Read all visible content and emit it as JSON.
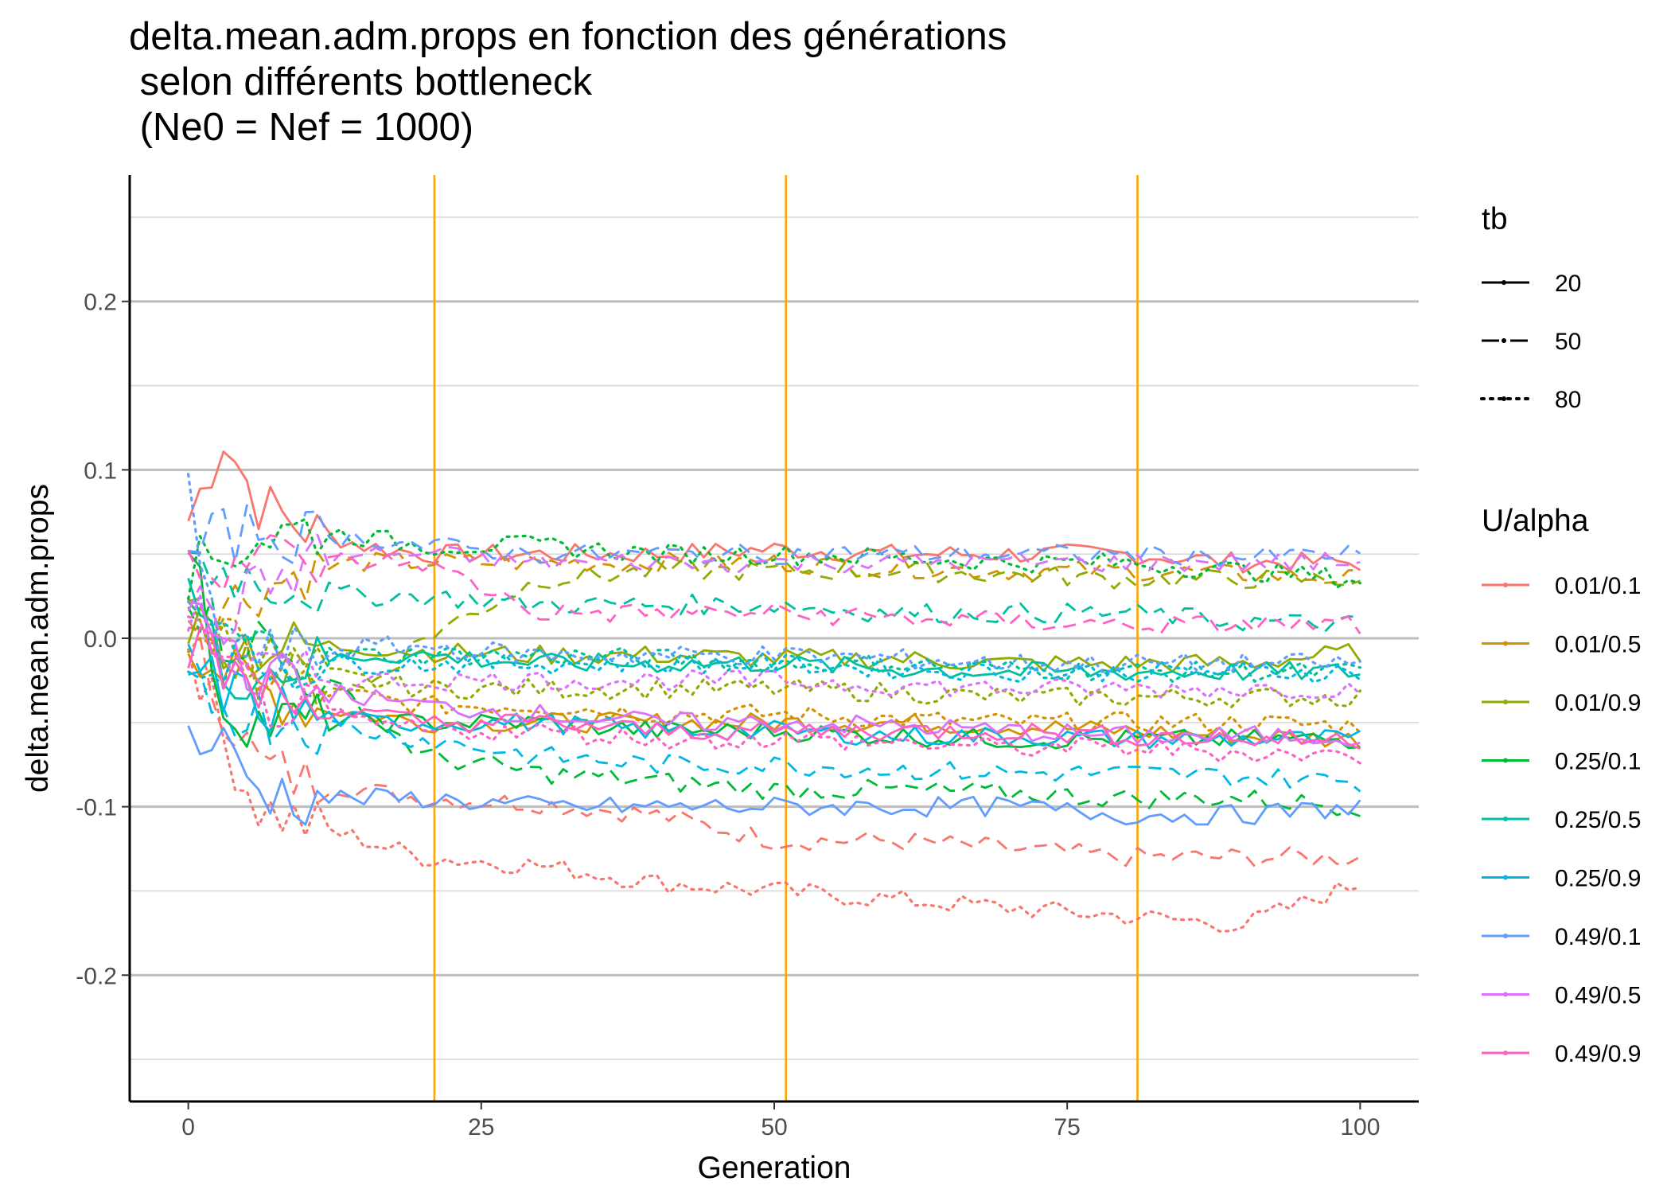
{
  "chart_data": {
    "type": "line",
    "title": [
      "delta.mean.adm.props en fonction des générations",
      " selon différents bottleneck",
      " (Ne0 = Nef = 1000)"
    ],
    "xlabel": "Generation",
    "ylabel": "delta.mean.adm.props",
    "xlim": [
      -5,
      105
    ],
    "ylim": [
      -0.275,
      0.275
    ],
    "x_ticks": [
      0,
      25,
      50,
      75,
      100
    ],
    "x_tick_labels": [
      "0",
      "25",
      "50",
      "75",
      "100"
    ],
    "y_ticks": [
      -0.2,
      -0.1,
      0.0,
      0.1,
      0.2
    ],
    "y_tick_labels": [
      "-0.2",
      "-0.1",
      "0.0",
      "0.1",
      "0.2"
    ],
    "grid": "horizontal",
    "vlines": [
      21,
      51,
      81
    ],
    "vline_color": "#FFA500",
    "legend_position": "right",
    "legends": [
      {
        "title": "tb",
        "items": [
          {
            "label": "20",
            "linetype": "solid"
          },
          {
            "label": "50",
            "linetype": "dashed"
          },
          {
            "label": "80",
            "linetype": "dotted"
          }
        ]
      },
      {
        "title": "U/alpha",
        "items": [
          {
            "label": "0.01/0.1",
            "color": "#F8766D"
          },
          {
            "label": "0.01/0.5",
            "color": "#D39200"
          },
          {
            "label": "0.01/0.9",
            "color": "#93AA00"
          },
          {
            "label": "0.25/0.1",
            "color": "#00BA38"
          },
          {
            "label": "0.25/0.5",
            "color": "#00C19F"
          },
          {
            "label": "0.25/0.9",
            "color": "#00B9E3"
          },
          {
            "label": "0.49/0.1",
            "color": "#619CFF"
          },
          {
            "label": "0.49/0.5",
            "color": "#DB72FB"
          },
          {
            "label": "0.49/0.9",
            "color": "#FF61C3"
          }
        ]
      }
    ],
    "x": {
      "start": 0,
      "end": 100,
      "step": 1
    },
    "series": [
      {
        "u_alpha": "0.01/0.1",
        "tb": "20",
        "color": "#F8766D",
        "linetype": "solid",
        "x": [
          0,
          3,
          6,
          10,
          15,
          20,
          30,
          40,
          50,
          60,
          70,
          80,
          90,
          100
        ],
        "values": [
          0.07,
          0.12,
          0.08,
          0.065,
          0.055,
          0.05,
          0.05,
          0.05,
          0.053,
          0.05,
          0.05,
          0.05,
          0.045,
          0.045
        ]
      },
      {
        "u_alpha": "0.01/0.1",
        "tb": "50",
        "color": "#F8766D",
        "linetype": "dashed",
        "x": [
          0,
          3,
          6,
          10,
          15,
          20,
          30,
          40,
          50,
          60,
          70,
          80,
          90,
          100
        ],
        "values": [
          0,
          -0.04,
          -0.075,
          -0.085,
          -0.09,
          -0.095,
          -0.098,
          -0.105,
          -0.12,
          -0.12,
          -0.125,
          -0.13,
          -0.13,
          -0.13
        ]
      },
      {
        "u_alpha": "0.01/0.1",
        "tb": "80",
        "color": "#F8766D",
        "linetype": "dotted",
        "x": [
          0,
          3,
          6,
          10,
          15,
          20,
          30,
          40,
          50,
          60,
          70,
          80,
          90,
          100
        ],
        "values": [
          0,
          -0.06,
          -0.1,
          -0.11,
          -0.12,
          -0.13,
          -0.135,
          -0.145,
          -0.15,
          -0.155,
          -0.16,
          -0.165,
          -0.17,
          -0.145
        ]
      },
      {
        "u_alpha": "0.01/0.5",
        "tb": "20",
        "color": "#D39200",
        "linetype": "solid",
        "x": [
          0,
          3,
          6,
          10,
          15,
          20,
          30,
          40,
          50,
          60,
          70,
          80,
          90,
          100
        ],
        "values": [
          0,
          -0.02,
          -0.03,
          -0.04,
          -0.045,
          -0.05,
          -0.05,
          -0.05,
          -0.05,
          -0.05,
          -0.052,
          -0.055,
          -0.058,
          -0.06
        ]
      },
      {
        "u_alpha": "0.01/0.5",
        "tb": "50",
        "color": "#D39200",
        "linetype": "dashed",
        "x": [
          0,
          3,
          6,
          10,
          15,
          20,
          30,
          40,
          50,
          60,
          70,
          80,
          90,
          100
        ],
        "values": [
          0.01,
          0.02,
          0.03,
          0.04,
          0.045,
          0.045,
          0.045,
          0.045,
          0.045,
          0.042,
          0.04,
          0.04,
          0.038,
          0.035
        ]
      },
      {
        "u_alpha": "0.01/0.5",
        "tb": "80",
        "color": "#D39200",
        "linetype": "dotted",
        "x": [
          0,
          3,
          6,
          10,
          15,
          20,
          30,
          40,
          50,
          60,
          70,
          80,
          90,
          100
        ],
        "values": [
          0.01,
          0.0,
          -0.02,
          -0.03,
          -0.035,
          -0.04,
          -0.04,
          -0.045,
          -0.045,
          -0.048,
          -0.05,
          -0.05,
          -0.05,
          -0.052
        ]
      },
      {
        "u_alpha": "0.01/0.9",
        "tb": "20",
        "color": "#93AA00",
        "linetype": "solid",
        "x": [
          0,
          3,
          6,
          10,
          15,
          20,
          30,
          40,
          50,
          60,
          70,
          80,
          90,
          100
        ],
        "values": [
          0.01,
          0.0,
          -0.005,
          -0.005,
          -0.005,
          -0.008,
          -0.01,
          -0.01,
          -0.012,
          -0.012,
          -0.015,
          -0.015,
          -0.015,
          -0.008
        ]
      },
      {
        "u_alpha": "0.01/0.9",
        "tb": "50",
        "color": "#93AA00",
        "linetype": "dashed",
        "x": [
          0,
          3,
          6,
          10,
          15,
          20,
          30,
          40,
          50,
          60,
          70,
          80,
          90,
          100
        ],
        "values": [
          0.01,
          0.0,
          -0.02,
          -0.025,
          -0.03,
          0.0,
          0.035,
          0.04,
          0.04,
          0.04,
          0.038,
          0.035,
          0.035,
          0.035
        ]
      },
      {
        "u_alpha": "0.01/0.9",
        "tb": "80",
        "color": "#93AA00",
        "linetype": "dotted",
        "x": [
          0,
          3,
          6,
          10,
          15,
          20,
          30,
          40,
          50,
          60,
          70,
          80,
          90,
          100
        ],
        "values": [
          0.01,
          0.0,
          -0.01,
          -0.02,
          -0.025,
          -0.03,
          -0.03,
          -0.03,
          -0.03,
          -0.032,
          -0.035,
          -0.035,
          -0.035,
          -0.035
        ]
      },
      {
        "u_alpha": "0.25/0.1",
        "tb": "20",
        "color": "#00BA38",
        "linetype": "solid",
        "x": [
          0,
          3,
          6,
          10,
          15,
          20,
          30,
          40,
          50,
          60,
          70,
          80,
          90,
          100
        ],
        "values": [
          0.06,
          -0.04,
          -0.05,
          -0.05,
          -0.05,
          -0.05,
          -0.05,
          -0.055,
          -0.055,
          -0.058,
          -0.06,
          -0.06,
          -0.06,
          -0.06
        ]
      },
      {
        "u_alpha": "0.25/0.1",
        "tb": "50",
        "color": "#00BA38",
        "linetype": "dashed",
        "x": [
          0,
          3,
          6,
          10,
          15,
          20,
          30,
          40,
          50,
          60,
          70,
          80,
          90,
          100
        ],
        "values": [
          0.03,
          0.0,
          0.0,
          -0.02,
          -0.04,
          -0.07,
          -0.08,
          -0.085,
          -0.09,
          -0.09,
          -0.092,
          -0.095,
          -0.095,
          -0.1
        ]
      },
      {
        "u_alpha": "0.25/0.1",
        "tb": "80",
        "color": "#00BA38",
        "linetype": "dotted",
        "x": [
          0,
          3,
          6,
          10,
          15,
          20,
          30,
          40,
          50,
          60,
          70,
          80,
          90,
          100
        ],
        "values": [
          0.04,
          0.05,
          0.06,
          0.065,
          0.06,
          0.055,
          0.055,
          0.05,
          0.05,
          0.048,
          0.045,
          0.045,
          0.04,
          0.035
        ]
      },
      {
        "u_alpha": "0.25/0.5",
        "tb": "20",
        "color": "#00C19F",
        "linetype": "solid",
        "x": [
          0,
          3,
          6,
          10,
          15,
          20,
          30,
          40,
          50,
          60,
          70,
          80,
          90,
          100
        ],
        "values": [
          0.03,
          -0.02,
          -0.02,
          -0.015,
          -0.01,
          -0.01,
          -0.015,
          -0.015,
          -0.015,
          -0.018,
          -0.02,
          -0.02,
          -0.02,
          -0.02
        ]
      },
      {
        "u_alpha": "0.25/0.5",
        "tb": "50",
        "color": "#00C19F",
        "linetype": "dashed",
        "x": [
          0,
          3,
          6,
          10,
          15,
          20,
          30,
          40,
          50,
          60,
          70,
          80,
          90,
          100
        ],
        "values": [
          0.05,
          0.04,
          0.035,
          0.03,
          0.025,
          0.025,
          0.02,
          0.02,
          0.02,
          0.015,
          0.015,
          0.015,
          0.01,
          0.008
        ]
      },
      {
        "u_alpha": "0.25/0.5",
        "tb": "80",
        "color": "#00C19F",
        "linetype": "dotted",
        "x": [
          0,
          3,
          6,
          10,
          15,
          20,
          30,
          40,
          50,
          60,
          70,
          80,
          90,
          100
        ],
        "values": [
          0.02,
          0.0,
          -0.005,
          -0.01,
          -0.01,
          -0.01,
          -0.01,
          -0.012,
          -0.015,
          -0.015,
          -0.018,
          -0.02,
          -0.02,
          -0.02
        ]
      },
      {
        "u_alpha": "0.25/0.9",
        "tb": "20",
        "color": "#00B9E3",
        "linetype": "solid",
        "x": [
          0,
          3,
          6,
          10,
          15,
          20,
          30,
          40,
          50,
          60,
          70,
          80,
          90,
          100
        ],
        "values": [
          -0.02,
          -0.03,
          -0.04,
          -0.045,
          -0.05,
          -0.05,
          -0.05,
          -0.055,
          -0.055,
          -0.058,
          -0.058,
          -0.06,
          -0.06,
          -0.06
        ]
      },
      {
        "u_alpha": "0.25/0.9",
        "tb": "50",
        "color": "#00B9E3",
        "linetype": "dashed",
        "x": [
          0,
          3,
          6,
          10,
          15,
          20,
          30,
          40,
          50,
          60,
          70,
          80,
          90,
          100
        ],
        "values": [
          -0.02,
          -0.04,
          -0.045,
          -0.05,
          -0.055,
          -0.06,
          -0.07,
          -0.075,
          -0.075,
          -0.078,
          -0.08,
          -0.08,
          -0.082,
          -0.085
        ]
      },
      {
        "u_alpha": "0.25/0.9",
        "tb": "80",
        "color": "#00B9E3",
        "linetype": "dotted",
        "x": [
          0,
          3,
          6,
          10,
          15,
          20,
          30,
          40,
          50,
          60,
          70,
          80,
          90,
          100
        ],
        "values": [
          -0.02,
          -0.01,
          -0.015,
          -0.015,
          -0.015,
          -0.015,
          -0.015,
          -0.015,
          -0.015,
          -0.018,
          -0.02,
          -0.02,
          -0.02,
          -0.02
        ]
      },
      {
        "u_alpha": "0.49/0.1",
        "tb": "20",
        "color": "#619CFF",
        "linetype": "solid",
        "x": [
          0,
          3,
          6,
          10,
          15,
          20,
          30,
          40,
          50,
          60,
          70,
          80,
          90,
          100
        ],
        "values": [
          -0.06,
          -0.065,
          -0.09,
          -0.095,
          -0.095,
          -0.095,
          -0.1,
          -0.1,
          -0.1,
          -0.1,
          -0.1,
          -0.105,
          -0.105,
          -0.1
        ]
      },
      {
        "u_alpha": "0.49/0.1",
        "tb": "50",
        "color": "#619CFF",
        "linetype": "dashed",
        "x": [
          0,
          3,
          6,
          10,
          15,
          20,
          30,
          40,
          50,
          60,
          70,
          80,
          90,
          100
        ],
        "values": [
          0.05,
          0.06,
          0.065,
          0.06,
          0.06,
          0.055,
          0.05,
          0.05,
          0.05,
          0.05,
          0.05,
          0.05,
          0.048,
          0.05
        ]
      },
      {
        "u_alpha": "0.49/0.1",
        "tb": "80",
        "color": "#619CFF",
        "linetype": "dotted",
        "x": [
          0,
          3,
          6,
          10,
          15,
          20,
          30,
          40,
          50,
          60,
          70,
          80,
          90,
          100
        ],
        "values": [
          0.08,
          -0.02,
          -0.01,
          -0.01,
          -0.005,
          -0.005,
          -0.01,
          -0.01,
          -0.01,
          -0.012,
          -0.015,
          -0.015,
          -0.015,
          -0.015
        ]
      },
      {
        "u_alpha": "0.49/0.5",
        "tb": "20",
        "color": "#DB72FB",
        "linetype": "solid",
        "x": [
          0,
          3,
          6,
          10,
          15,
          20,
          30,
          40,
          50,
          60,
          70,
          80,
          90,
          100
        ],
        "values": [
          0.02,
          0.0,
          -0.02,
          -0.03,
          -0.035,
          -0.04,
          -0.045,
          -0.05,
          -0.05,
          -0.052,
          -0.055,
          -0.058,
          -0.058,
          -0.058
        ]
      },
      {
        "u_alpha": "0.49/0.5",
        "tb": "50",
        "color": "#DB72FB",
        "linetype": "dashed",
        "x": [
          0,
          3,
          6,
          10,
          15,
          20,
          30,
          40,
          50,
          60,
          70,
          80,
          90,
          100
        ],
        "values": [
          0.02,
          0.01,
          0.03,
          0.045,
          0.05,
          0.05,
          0.045,
          0.045,
          0.045,
          0.045,
          0.045,
          0.045,
          0.045,
          0.045
        ]
      },
      {
        "u_alpha": "0.49/0.5",
        "tb": "80",
        "color": "#DB72FB",
        "linetype": "dotted",
        "x": [
          0,
          3,
          6,
          10,
          15,
          20,
          30,
          40,
          50,
          60,
          70,
          80,
          90,
          100
        ],
        "values": [
          0.02,
          -0.01,
          -0.02,
          -0.025,
          -0.025,
          -0.025,
          -0.025,
          -0.025,
          -0.025,
          -0.028,
          -0.03,
          -0.03,
          -0.03,
          -0.03
        ]
      },
      {
        "u_alpha": "0.49/0.9",
        "tb": "20",
        "color": "#FF61C3",
        "linetype": "solid",
        "x": [
          0,
          3,
          6,
          10,
          15,
          20,
          30,
          40,
          50,
          60,
          70,
          80,
          90,
          100
        ],
        "values": [
          0.0,
          -0.02,
          -0.03,
          -0.04,
          -0.045,
          -0.05,
          -0.05,
          -0.055,
          -0.055,
          -0.055,
          -0.055,
          -0.058,
          -0.06,
          -0.06
        ]
      },
      {
        "u_alpha": "0.49/0.9",
        "tb": "50",
        "color": "#FF61C3",
        "linetype": "dashed",
        "x": [
          0,
          3,
          6,
          10,
          15,
          20,
          30,
          40,
          50,
          60,
          70,
          80,
          90,
          100
        ],
        "values": [
          0.05,
          0.045,
          0.05,
          0.045,
          0.045,
          0.045,
          0.015,
          0.015,
          0.015,
          0.012,
          0.01,
          0.008,
          0.008,
          0.008
        ]
      },
      {
        "u_alpha": "0.49/0.9",
        "tb": "80",
        "color": "#FF61C3",
        "linetype": "dotted",
        "x": [
          0,
          3,
          6,
          10,
          15,
          20,
          30,
          40,
          50,
          60,
          70,
          80,
          90,
          100
        ],
        "values": [
          0.0,
          -0.02,
          -0.035,
          -0.045,
          -0.05,
          -0.055,
          -0.055,
          -0.06,
          -0.06,
          -0.062,
          -0.065,
          -0.065,
          -0.068,
          -0.07
        ]
      }
    ]
  }
}
